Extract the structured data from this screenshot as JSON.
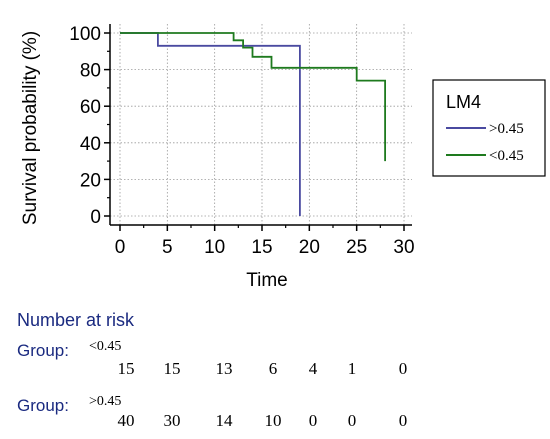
{
  "chart_data": {
    "type": "line",
    "title": "",
    "xlabel": "Time",
    "ylabel": "Survival probability (%)",
    "xlim": [
      0,
      30
    ],
    "ylim": [
      0,
      100
    ],
    "x_ticks": [
      0,
      5,
      10,
      15,
      20,
      25,
      30
    ],
    "y_ticks": [
      0,
      20,
      40,
      60,
      80,
      100
    ],
    "grid": true,
    "legend": {
      "title": "LM4",
      "placement": "right"
    },
    "series": [
      {
        "name": ">0.45",
        "color": "#4a4aa0",
        "step_points": [
          [
            0,
            100
          ],
          [
            4,
            100
          ],
          [
            4,
            93
          ],
          [
            19,
            93
          ],
          [
            19,
            0
          ]
        ]
      },
      {
        "name": "<0.45",
        "color": "#1e7a1e",
        "step_points": [
          [
            0,
            100
          ],
          [
            12,
            100
          ],
          [
            12,
            96
          ],
          [
            13,
            96
          ],
          [
            13,
            92
          ],
          [
            14,
            92
          ],
          [
            14,
            87
          ],
          [
            16,
            87
          ],
          [
            16,
            81
          ],
          [
            25,
            81
          ],
          [
            25,
            74
          ],
          [
            28,
            74
          ],
          [
            28,
            30
          ]
        ]
      }
    ],
    "risk_table": {
      "title": "Number at risk",
      "group_label": "Group:",
      "rows": [
        {
          "group": "<0.45",
          "values": [
            "15",
            "15",
            "13",
            "6",
            "4",
            "1",
            "0"
          ]
        },
        {
          "group": ">0.45",
          "values": [
            "40",
            "30",
            "14",
            "10",
            "0",
            "0",
            "0"
          ]
        }
      ]
    }
  }
}
